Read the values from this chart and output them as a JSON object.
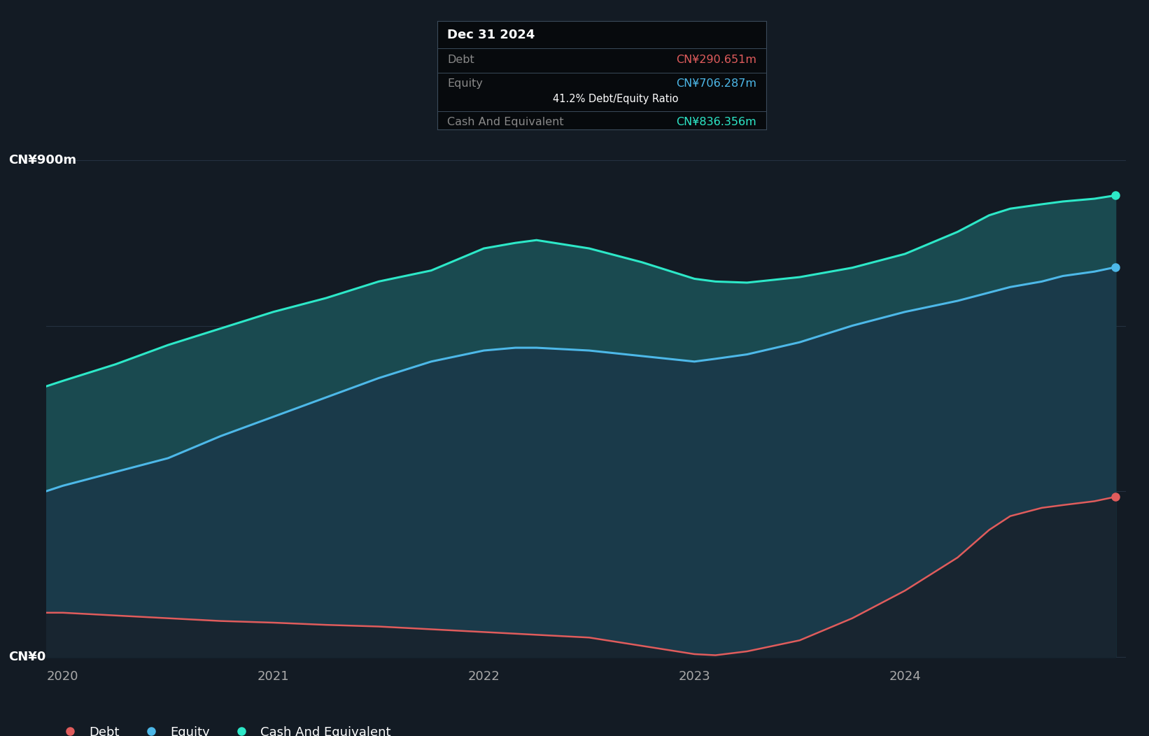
{
  "background_color": "#131B24",
  "plot_bg_color": "#131B24",
  "grid_color": "#253040",
  "tooltip_bg": "#070a0d",
  "tooltip_border": "#3a4a5a",
  "title_box_text": "Dec 31 2024",
  "tooltip_debt_label": "Debt",
  "tooltip_debt_value": "CN¥290.651m",
  "tooltip_equity_label": "Equity",
  "tooltip_equity_value": "CN¥706.287m",
  "tooltip_ratio": "41.2% Debt/Equity Ratio",
  "tooltip_cash_label": "Cash And Equivalent",
  "tooltip_cash_value": "CN¥836.356m",
  "debt_color": "#e05c5c",
  "equity_color": "#4db8e8",
  "cash_color": "#2de8c8",
  "debt_fill_color": "#1a2d3a",
  "equity_fill_color": "#1a3545",
  "cash_fill_color": "#1a5050",
  "y_label_top": "CN¥900m",
  "y_label_zero": "CN¥0",
  "x_labels": [
    "2020",
    "2021",
    "2022",
    "2023",
    "2024"
  ],
  "legend_debt": "Debt",
  "legend_equity": "Equity",
  "legend_cash": "Cash And Equivalent",
  "years": [
    2019.92,
    2020.0,
    2020.25,
    2020.5,
    2020.75,
    2021.0,
    2021.25,
    2021.5,
    2021.75,
    2022.0,
    2022.15,
    2022.25,
    2022.5,
    2022.75,
    2023.0,
    2023.1,
    2023.25,
    2023.5,
    2023.75,
    2024.0,
    2024.25,
    2024.4,
    2024.5,
    2024.65,
    2024.75,
    2024.9,
    2025.0
  ],
  "debt": [
    80,
    80,
    75,
    70,
    65,
    62,
    58,
    55,
    50,
    45,
    42,
    40,
    35,
    20,
    5,
    3,
    10,
    30,
    70,
    120,
    180,
    230,
    255,
    270,
    275,
    282,
    290
  ],
  "equity": [
    300,
    310,
    335,
    360,
    400,
    435,
    470,
    505,
    535,
    555,
    560,
    560,
    555,
    545,
    535,
    540,
    548,
    570,
    600,
    625,
    645,
    660,
    670,
    680,
    690,
    698,
    706
  ],
  "cash": [
    490,
    500,
    530,
    565,
    595,
    625,
    650,
    680,
    700,
    740,
    750,
    755,
    740,
    715,
    685,
    680,
    678,
    688,
    705,
    730,
    770,
    800,
    812,
    820,
    825,
    830,
    836
  ],
  "ylim": [
    -10,
    950
  ],
  "xlim": [
    2019.92,
    2025.05
  ],
  "yticks": [
    0,
    300,
    600,
    900
  ],
  "xticks": [
    2020,
    2021,
    2022,
    2023,
    2024
  ]
}
